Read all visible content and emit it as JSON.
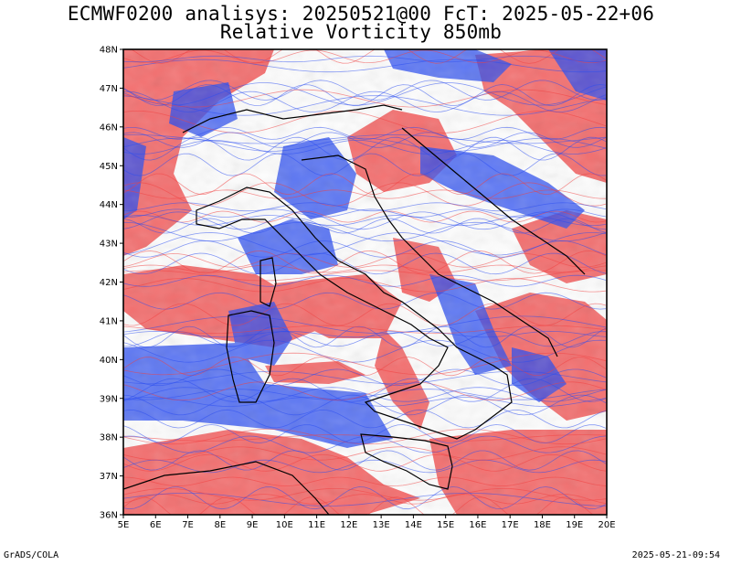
{
  "header": {
    "line1": "ECMWF0200 analisys: 20250521@00 FcT: 2025-05-22+06",
    "line2": "Relative Vorticity 850mb"
  },
  "footer": {
    "software": "GrADS/COLA",
    "generated": "2025-05-21-09:54"
  },
  "axes": {
    "lon_labels": [
      "5E",
      "6E",
      "7E",
      "8E",
      "9E",
      "10E",
      "11E",
      "12E",
      "13E",
      "14E",
      "15E",
      "16E",
      "17E",
      "18E",
      "19E",
      "20E"
    ],
    "lat_labels": [
      "48N",
      "47N",
      "46N",
      "45N",
      "44N",
      "43N",
      "42N",
      "41N",
      "40N",
      "39N",
      "38N",
      "37N",
      "36N"
    ]
  },
  "colors": {
    "positive_vorticity": "#f04040",
    "negative_vorticity": "#2a4cf0",
    "coastline": "#000000",
    "frame": "#000000"
  }
}
